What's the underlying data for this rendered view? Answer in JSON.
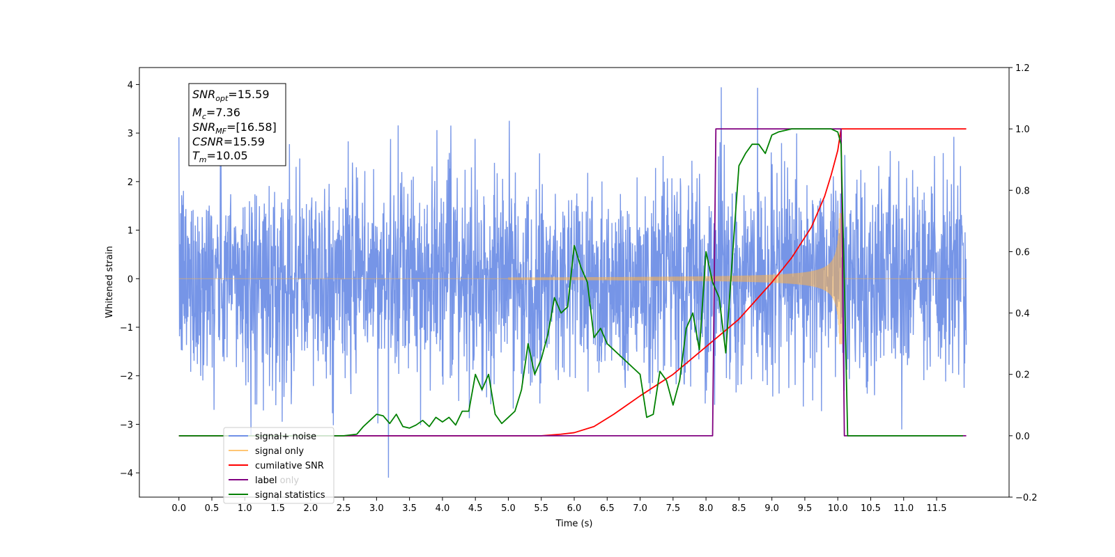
{
  "chart_data": {
    "type": "line",
    "xlabel": "Time (s)",
    "ylabel": "Whitened strain",
    "xlim": [
      -0.6,
      12.6
    ],
    "ylim": [
      -4.5,
      4.35
    ],
    "y2lim": [
      -0.2,
      1.2
    ],
    "x_ticks": [
      "0.0",
      "0.5",
      "1.0",
      "1.5",
      "2.0",
      "2.5",
      "3.0",
      "3.5",
      "4.0",
      "4.5",
      "5.0",
      "5.5",
      "6.0",
      "6.5",
      "7.0",
      "7.5",
      "8.0",
      "8.5",
      "9.0",
      "9.5",
      "10.0",
      "10.5",
      "11.0",
      "11.5"
    ],
    "y_ticks": [
      "4",
      "3",
      "2",
      "1",
      "0",
      "−1",
      "−2",
      "−3",
      "−4"
    ],
    "y2_ticks": [
      "1.2",
      "1.0",
      "0.8",
      "0.6",
      "0.4",
      "0.2",
      "0.0",
      "−0.2"
    ],
    "annotation": {
      "snr_opt": {
        "sym": "SNR",
        "sub": "opt",
        "val": "=15.59"
      },
      "mc": {
        "sym": "M",
        "sub": "c",
        "val": "=7.36"
      },
      "snr_mf": {
        "sym": "SNR",
        "sub": "MF",
        "val": "=[16.58]"
      },
      "csnr": {
        "sym": "CSNR",
        "val": "=15.59"
      },
      "tm": {
        "sym": "T",
        "sub": "m",
        "val": "=10.05"
      }
    },
    "series": [
      {
        "name": "signal+ noise",
        "axis": "left",
        "color": "#6f8fe6",
        "description": "whitened noisy strain, amplitude ~±2.5 with peaks near ±4"
      },
      {
        "name": "signal only",
        "axis": "left",
        "color": "#ffb347",
        "description": "chirp growing from 0 at ~6 s to ~±1.3 at 10.05 s, then 0"
      },
      {
        "name": "cumilative SNR",
        "axis": "right",
        "x": [
          0.0,
          5.5,
          5.8,
          6.0,
          6.3,
          6.6,
          7.0,
          7.5,
          8.0,
          8.5,
          9.0,
          9.3,
          9.6,
          9.8,
          9.9,
          10.0,
          10.05,
          11.95
        ],
        "y": [
          0.0,
          0.0,
          0.005,
          0.01,
          0.03,
          0.07,
          0.13,
          0.2,
          0.29,
          0.38,
          0.5,
          0.58,
          0.68,
          0.78,
          0.85,
          0.93,
          1.0,
          1.0
        ],
        "color": "#ff0000"
      },
      {
        "name": "label",
        "axis": "right",
        "x": [
          0.0,
          8.1,
          8.15,
          10.05,
          10.1,
          11.95
        ],
        "y": [
          0.0,
          0.0,
          1.0,
          1.0,
          0.0,
          0.0
        ],
        "color": "#800080"
      },
      {
        "name": "label only",
        "axis": "right",
        "color": "#cccccc",
        "description": "legend entry only"
      },
      {
        "name": "signal statistics",
        "axis": "right",
        "x": [
          0.0,
          2.5,
          2.7,
          2.8,
          2.9,
          3.0,
          3.1,
          3.2,
          3.3,
          3.4,
          3.5,
          3.6,
          3.7,
          3.8,
          3.9,
          4.0,
          4.1,
          4.2,
          4.3,
          4.4,
          4.5,
          4.6,
          4.7,
          4.8,
          4.9,
          5.0,
          5.1,
          5.2,
          5.3,
          5.4,
          5.5,
          5.6,
          5.7,
          5.8,
          5.9,
          6.0,
          6.1,
          6.2,
          6.3,
          6.4,
          6.5,
          6.6,
          6.7,
          6.8,
          6.9,
          7.0,
          7.1,
          7.2,
          7.3,
          7.4,
          7.5,
          7.6,
          7.7,
          7.8,
          7.9,
          8.0,
          8.1,
          8.2,
          8.3,
          8.4,
          8.5,
          8.6,
          8.7,
          8.8,
          8.9,
          9.0,
          9.1,
          9.3,
          9.5,
          9.7,
          9.9,
          10.0,
          10.05,
          10.1,
          10.15,
          11.9
        ],
        "y": [
          0.0,
          0.0,
          0.005,
          0.03,
          0.05,
          0.07,
          0.065,
          0.04,
          0.07,
          0.03,
          0.025,
          0.035,
          0.05,
          0.03,
          0.06,
          0.045,
          0.06,
          0.035,
          0.08,
          0.08,
          0.2,
          0.15,
          0.2,
          0.07,
          0.04,
          0.06,
          0.08,
          0.15,
          0.3,
          0.2,
          0.25,
          0.33,
          0.45,
          0.4,
          0.42,
          0.62,
          0.55,
          0.5,
          0.32,
          0.35,
          0.3,
          0.28,
          0.26,
          0.24,
          0.22,
          0.2,
          0.06,
          0.07,
          0.21,
          0.18,
          0.1,
          0.18,
          0.35,
          0.4,
          0.28,
          0.6,
          0.5,
          0.45,
          0.27,
          0.58,
          0.88,
          0.92,
          0.95,
          0.95,
          0.92,
          0.98,
          0.99,
          1.0,
          1.0,
          1.0,
          1.0,
          0.99,
          0.95,
          0.5,
          0.0,
          0.0
        ],
        "color": "#008000"
      }
    ],
    "legend_position": "lower-left"
  }
}
